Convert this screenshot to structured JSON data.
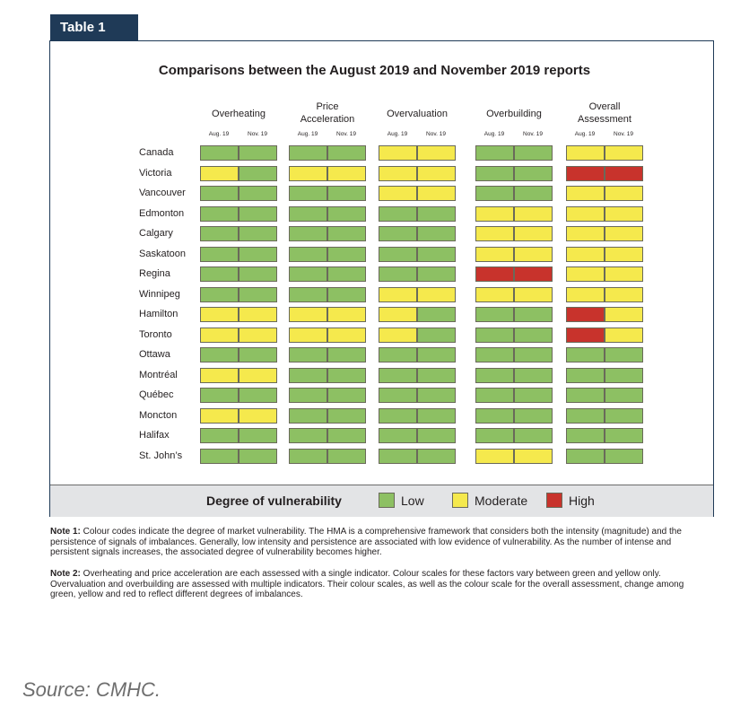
{
  "table_tab": "Table 1",
  "title": "Comparisons between the August 2019 and November 2019 reports",
  "columns": [
    {
      "label": "Overheating"
    },
    {
      "label": "Price\nAcceleration"
    },
    {
      "label": "Overvaluation"
    },
    {
      "label": "Overbuilding"
    },
    {
      "label": "Overall\nAssessment"
    }
  ],
  "subheaders": [
    "Aug. 19",
    "Nov. 19"
  ],
  "colors": {
    "green": "#8dc063",
    "yellow": "#f5e94d",
    "red": "#c8332c"
  },
  "rows": [
    {
      "city": "Canada",
      "ratings": [
        "green",
        "green",
        "green",
        "green",
        "yellow",
        "yellow",
        "green",
        "green",
        "yellow",
        "yellow"
      ]
    },
    {
      "city": "Victoria",
      "ratings": [
        "yellow",
        "green",
        "yellow",
        "yellow",
        "yellow",
        "yellow",
        "green",
        "green",
        "red",
        "red"
      ]
    },
    {
      "city": "Vancouver",
      "ratings": [
        "green",
        "green",
        "green",
        "green",
        "yellow",
        "yellow",
        "green",
        "green",
        "yellow",
        "yellow"
      ]
    },
    {
      "city": "Edmonton",
      "ratings": [
        "green",
        "green",
        "green",
        "green",
        "green",
        "green",
        "yellow",
        "yellow",
        "yellow",
        "yellow"
      ]
    },
    {
      "city": "Calgary",
      "ratings": [
        "green",
        "green",
        "green",
        "green",
        "green",
        "green",
        "yellow",
        "yellow",
        "yellow",
        "yellow"
      ]
    },
    {
      "city": "Saskatoon",
      "ratings": [
        "green",
        "green",
        "green",
        "green",
        "green",
        "green",
        "yellow",
        "yellow",
        "yellow",
        "yellow"
      ]
    },
    {
      "city": "Regina",
      "ratings": [
        "green",
        "green",
        "green",
        "green",
        "green",
        "green",
        "red",
        "red",
        "yellow",
        "yellow"
      ]
    },
    {
      "city": "Winnipeg",
      "ratings": [
        "green",
        "green",
        "green",
        "green",
        "yellow",
        "yellow",
        "yellow",
        "yellow",
        "yellow",
        "yellow"
      ]
    },
    {
      "city": "Hamilton",
      "ratings": [
        "yellow",
        "yellow",
        "yellow",
        "yellow",
        "yellow",
        "green",
        "green",
        "green",
        "red",
        "yellow"
      ]
    },
    {
      "city": "Toronto",
      "ratings": [
        "yellow",
        "yellow",
        "yellow",
        "yellow",
        "yellow",
        "green",
        "green",
        "green",
        "red",
        "yellow"
      ]
    },
    {
      "city": "Ottawa",
      "ratings": [
        "green",
        "green",
        "green",
        "green",
        "green",
        "green",
        "green",
        "green",
        "green",
        "green"
      ]
    },
    {
      "city": "Montréal",
      "ratings": [
        "yellow",
        "yellow",
        "green",
        "green",
        "green",
        "green",
        "green",
        "green",
        "green",
        "green"
      ]
    },
    {
      "city": "Québec",
      "ratings": [
        "green",
        "green",
        "green",
        "green",
        "green",
        "green",
        "green",
        "green",
        "green",
        "green"
      ]
    },
    {
      "city": "Moncton",
      "ratings": [
        "yellow",
        "yellow",
        "green",
        "green",
        "green",
        "green",
        "green",
        "green",
        "green",
        "green"
      ]
    },
    {
      "city": "Halifax",
      "ratings": [
        "green",
        "green",
        "green",
        "green",
        "green",
        "green",
        "green",
        "green",
        "green",
        "green"
      ]
    },
    {
      "city": "St. John’s",
      "ratings": [
        "green",
        "green",
        "green",
        "green",
        "green",
        "green",
        "yellow",
        "yellow",
        "green",
        "green"
      ]
    }
  ],
  "legend": {
    "title": "Degree of vulnerability",
    "items": [
      {
        "label": "Low",
        "color": "green"
      },
      {
        "label": "Moderate",
        "color": "yellow"
      },
      {
        "label": "High",
        "color": "red"
      }
    ]
  },
  "notes": {
    "note1_label": "Note 1:",
    "note1_text": " Colour codes indicate the degree of market vulnerability. The HMA is a comprehensive framework that considers both the intensity (magnitude) and the persistence of signals of imbalances. Generally, low intensity and persistence are associated with low evidence of vulnerability. As the number of intense and persistent signals increases, the associated degree of vulnerability becomes higher.",
    "note2_label": "Note 2:",
    "note2_text": " Overheating and price acceleration are each assessed with a single indicator. Colour scales for these factors vary between green and yellow only. Overvaluation and overbuilding are assessed with multiple indicators. Their colour scales, as well as the colour scale for the overall assessment, change among green, yellow and red to reflect different degrees of imbalances."
  },
  "source": "Source: CMHC."
}
